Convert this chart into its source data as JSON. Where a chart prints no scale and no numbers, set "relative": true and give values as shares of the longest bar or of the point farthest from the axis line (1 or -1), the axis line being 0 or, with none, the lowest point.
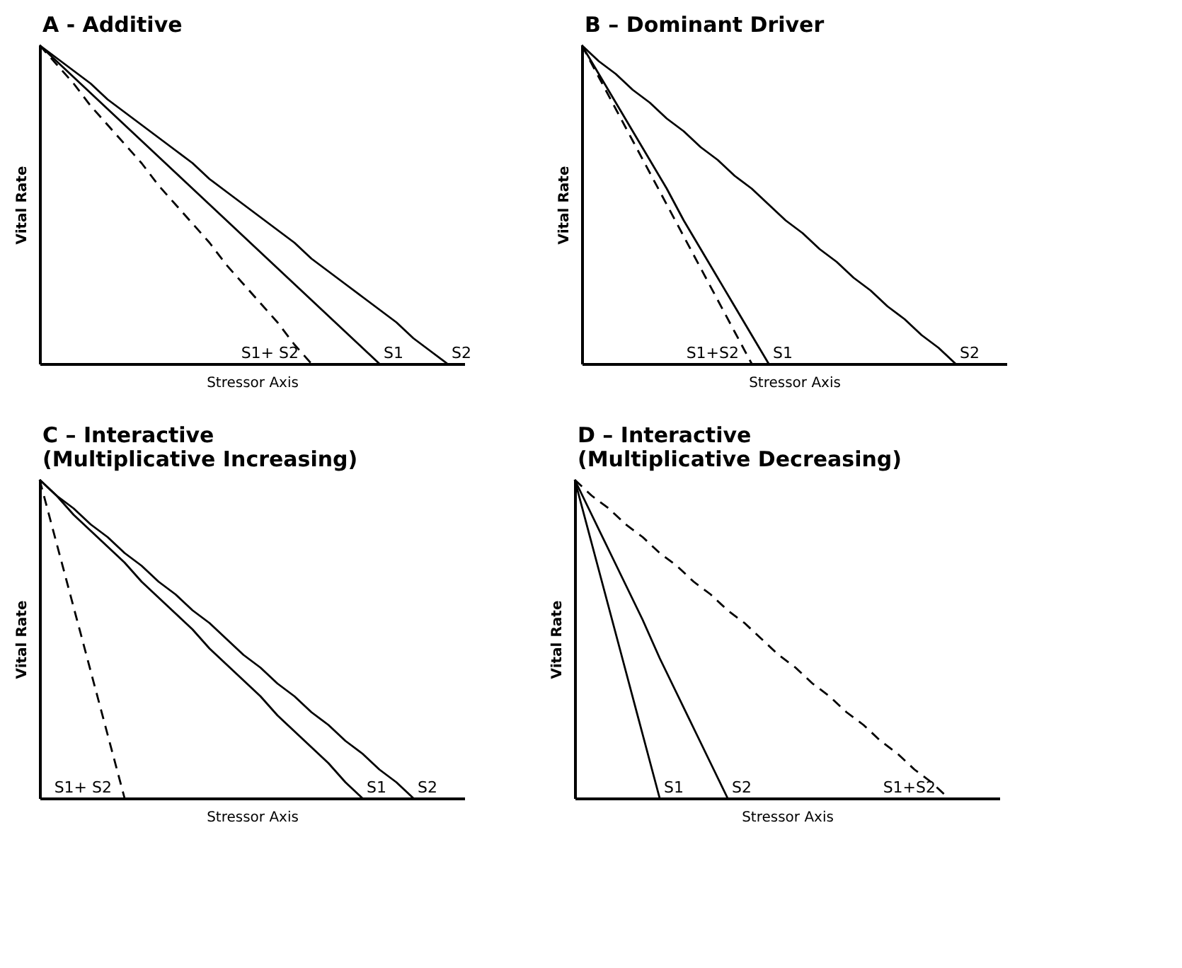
{
  "chart_data": [
    {
      "type": "line",
      "title": "A - Additive",
      "xlabel": "Stressor Axis",
      "ylabel": "Vital Rate",
      "relative": true,
      "tick_labels": false,
      "categories": [
        null,
        null,
        null,
        null,
        null,
        null,
        null,
        null,
        null,
        null,
        null,
        null,
        null,
        null,
        null,
        null,
        null,
        null,
        null,
        null,
        null,
        null,
        null,
        null,
        null,
        null
      ],
      "series": [
        {
          "name": "S1+ S2",
          "color": "#000000",
          "line_style": "dashed",
          "values": [
            1,
            0.94,
            0.88,
            0.81,
            0.75,
            0.69,
            0.63,
            0.56,
            0.5,
            0.44,
            0.38,
            0.31,
            0.25,
            0.19,
            0.13,
            0.06,
            0,
            null,
            null,
            null,
            null,
            null,
            null,
            null,
            null,
            null
          ]
        },
        {
          "name": "S1",
          "color": "#000000",
          "line_style": "solid",
          "values": [
            1,
            0.95,
            0.9,
            0.85,
            0.8,
            0.75,
            0.7,
            0.65,
            0.6,
            0.55,
            0.5,
            0.45,
            0.4,
            0.35,
            0.3,
            0.25,
            0.2,
            0.15,
            0.1,
            0.05,
            0,
            null,
            null,
            null,
            null,
            null
          ]
        },
        {
          "name": "S2",
          "color": "#000000",
          "line_style": "solid",
          "values": [
            1,
            0.96,
            0.92,
            0.88,
            0.83,
            0.79,
            0.75,
            0.71,
            0.67,
            0.63,
            0.58,
            0.54,
            0.5,
            0.46,
            0.42,
            0.38,
            0.33,
            0.29,
            0.25,
            0.21,
            0.17,
            0.13,
            0.08,
            0.04,
            0,
            null
          ]
        }
      ]
    },
    {
      "type": "line",
      "title": "B – Dominant Driver",
      "xlabel": "Stressor Axis",
      "ylabel": "Vital Rate",
      "relative": true,
      "tick_labels": false,
      "categories": [
        null,
        null,
        null,
        null,
        null,
        null,
        null,
        null,
        null,
        null,
        null,
        null,
        null,
        null,
        null,
        null,
        null,
        null,
        null,
        null,
        null,
        null,
        null,
        null,
        null,
        null
      ],
      "series": [
        {
          "name": "S1+S2",
          "color": "#000000",
          "line_style": "dashed",
          "values": [
            1,
            0.9,
            0.8,
            0.7,
            0.6,
            0.5,
            0.4,
            0.3,
            0.2,
            0.1,
            0,
            null,
            null,
            null,
            null,
            null,
            null,
            null,
            null,
            null,
            null,
            null,
            null,
            null,
            null,
            null
          ]
        },
        {
          "name": "S1",
          "color": "#000000",
          "line_style": "solid",
          "values": [
            1,
            0.91,
            0.82,
            0.73,
            0.64,
            0.55,
            0.45,
            0.36,
            0.27,
            0.18,
            0.09,
            0,
            null,
            null,
            null,
            null,
            null,
            null,
            null,
            null,
            null,
            null,
            null,
            null,
            null,
            null
          ]
        },
        {
          "name": "S2",
          "color": "#000000",
          "line_style": "solid",
          "values": [
            1,
            0.95,
            0.91,
            0.86,
            0.82,
            0.77,
            0.73,
            0.68,
            0.64,
            0.59,
            0.55,
            0.5,
            0.45,
            0.41,
            0.36,
            0.32,
            0.27,
            0.23,
            0.18,
            0.14,
            0.09,
            0.05,
            0,
            null,
            null,
            null
          ]
        }
      ]
    },
    {
      "type": "line",
      "title": "C – Interactive\n(Multiplicative Increasing)",
      "xlabel": "Stressor Axis",
      "ylabel": "Vital Rate",
      "relative": true,
      "tick_labels": false,
      "categories": [
        null,
        null,
        null,
        null,
        null,
        null,
        null,
        null,
        null,
        null,
        null,
        null,
        null,
        null,
        null,
        null,
        null,
        null,
        null,
        null,
        null,
        null,
        null,
        null,
        null,
        null
      ],
      "series": [
        {
          "name": "S1+ S2",
          "color": "#000000",
          "line_style": "dashed",
          "values": [
            1,
            0.8,
            0.6,
            0.4,
            0.2,
            0,
            null,
            null,
            null,
            null,
            null,
            null,
            null,
            null,
            null,
            null,
            null,
            null,
            null,
            null,
            null,
            null,
            null,
            null,
            null,
            null
          ]
        },
        {
          "name": "S1",
          "color": "#000000",
          "line_style": "solid",
          "values": [
            1,
            0.95,
            0.89,
            0.84,
            0.79,
            0.74,
            0.68,
            0.63,
            0.58,
            0.53,
            0.47,
            0.42,
            0.37,
            0.32,
            0.26,
            0.21,
            0.16,
            0.11,
            0.05,
            0,
            null,
            null,
            null,
            null,
            null,
            null
          ]
        },
        {
          "name": "S2",
          "color": "#000000",
          "line_style": "solid",
          "values": [
            1,
            0.95,
            0.91,
            0.86,
            0.82,
            0.77,
            0.73,
            0.68,
            0.64,
            0.59,
            0.55,
            0.5,
            0.45,
            0.41,
            0.36,
            0.32,
            0.27,
            0.23,
            0.18,
            0.14,
            0.09,
            0.05,
            0,
            null,
            null,
            null
          ]
        }
      ]
    },
    {
      "type": "line",
      "title": "D – Interactive\n(Multiplicative Decreasing)",
      "xlabel": "Stressor Axis",
      "ylabel": "Vital Rate",
      "relative": true,
      "tick_labels": false,
      "categories": [
        null,
        null,
        null,
        null,
        null,
        null,
        null,
        null,
        null,
        null,
        null,
        null,
        null,
        null,
        null,
        null,
        null,
        null,
        null,
        null,
        null,
        null,
        null,
        null,
        null,
        null
      ],
      "series": [
        {
          "name": "S1",
          "color": "#000000",
          "line_style": "solid",
          "values": [
            1,
            0.8,
            0.6,
            0.4,
            0.2,
            0,
            null,
            null,
            null,
            null,
            null,
            null,
            null,
            null,
            null,
            null,
            null,
            null,
            null,
            null,
            null,
            null,
            null,
            null,
            null,
            null
          ]
        },
        {
          "name": "S2",
          "color": "#000000",
          "line_style": "solid",
          "values": [
            1,
            0.89,
            0.78,
            0.67,
            0.56,
            0.44,
            0.33,
            0.22,
            0.11,
            0,
            null,
            null,
            null,
            null,
            null,
            null,
            null,
            null,
            null,
            null,
            null,
            null,
            null,
            null,
            null,
            null
          ]
        },
        {
          "name": "S1+S2",
          "color": "#000000",
          "line_style": "dashed",
          "values": [
            1,
            0.95,
            0.91,
            0.86,
            0.82,
            0.77,
            0.73,
            0.68,
            0.64,
            0.59,
            0.55,
            0.5,
            0.45,
            0.41,
            0.36,
            0.32,
            0.27,
            0.23,
            0.18,
            0.14,
            0.09,
            0.05,
            0,
            null,
            null,
            null
          ]
        }
      ]
    }
  ]
}
